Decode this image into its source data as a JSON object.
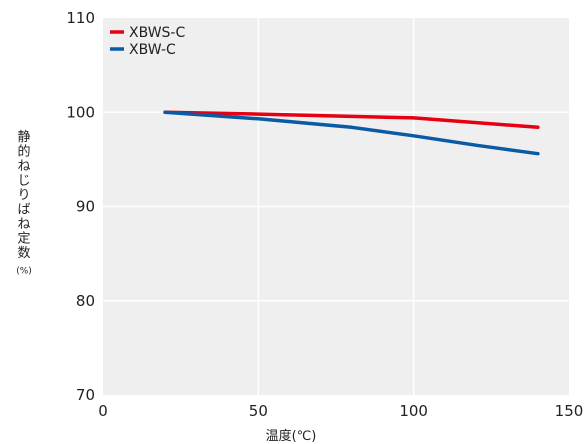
{
  "chart_data": {
    "type": "line",
    "xlabel": "温度(℃)",
    "ylabel": "静的ねじりばね定数",
    "ylabel_unit": "(%)",
    "xlim": [
      0,
      150
    ],
    "ylim": [
      70,
      110
    ],
    "x_ticks": [
      0,
      50,
      100,
      150
    ],
    "y_ticks": [
      70,
      80,
      90,
      100,
      110
    ],
    "grid": true,
    "legend_position": "top-left",
    "plot_background": "#efefef",
    "series": [
      {
        "name": "XBWS-C",
        "color": "#e60012",
        "x": [
          20,
          50,
          100,
          140
        ],
        "y": [
          100,
          99.8,
          99.4,
          98.4
        ]
      },
      {
        "name": "XBW-C",
        "color": "#0a5aa6",
        "x": [
          20,
          50,
          80,
          100,
          120,
          140
        ],
        "y": [
          100,
          99.3,
          98.4,
          97.5,
          96.5,
          95.6
        ]
      }
    ]
  }
}
